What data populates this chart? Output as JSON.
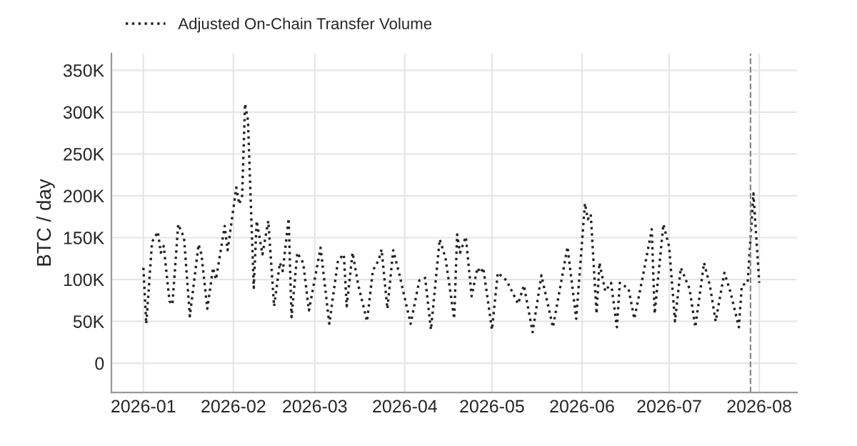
{
  "chart_data": {
    "type": "line",
    "ylabel": "BTC / day",
    "x": [
      "2026-01-01",
      "2026-01-02",
      "2026-01-04",
      "2026-01-06",
      "2026-01-07",
      "2026-01-08",
      "2026-01-10",
      "2026-01-11",
      "2026-01-13",
      "2026-01-15",
      "2026-01-17",
      "2026-01-20",
      "2026-01-21",
      "2026-01-23",
      "2026-01-25",
      "2026-01-26",
      "2026-01-29",
      "2026-01-30",
      "2026-02-02",
      "2026-02-03",
      "2026-02-04",
      "2026-02-05",
      "2026-02-06",
      "2026-02-08",
      "2026-02-09",
      "2026-02-11",
      "2026-02-13",
      "2026-02-15",
      "2026-02-17",
      "2026-02-18",
      "2026-02-20",
      "2026-02-21",
      "2026-02-23",
      "2026-02-25",
      "2026-02-27",
      "2026-03-03",
      "2026-03-06",
      "2026-03-09",
      "2026-03-11",
      "2026-03-12",
      "2026-03-14",
      "2026-03-16",
      "2026-03-19",
      "2026-03-21",
      "2026-03-23",
      "2026-03-24",
      "2026-03-26",
      "2026-03-28",
      "2026-03-30",
      "2026-04-03",
      "2026-04-06",
      "2026-04-08",
      "2026-04-10",
      "2026-04-13",
      "2026-04-15",
      "2026-04-18",
      "2026-04-19",
      "2026-04-20",
      "2026-04-22",
      "2026-04-24",
      "2026-04-26",
      "2026-04-27",
      "2026-04-28",
      "2026-05-01",
      "2026-05-03",
      "2026-05-06",
      "2026-05-10",
      "2026-05-12",
      "2026-05-15",
      "2026-05-18",
      "2026-05-22",
      "2026-05-27",
      "2026-05-30",
      "2026-06-02",
      "2026-06-03",
      "2026-06-04",
      "2026-06-06",
      "2026-06-07",
      "2026-06-09",
      "2026-06-11",
      "2026-06-13",
      "2026-06-14",
      "2026-06-17",
      "2026-06-19",
      "2026-06-22",
      "2026-06-25",
      "2026-06-26",
      "2026-06-29",
      "2026-07-01",
      "2026-07-03",
      "2026-07-05",
      "2026-07-08",
      "2026-07-10",
      "2026-07-13",
      "2026-07-15",
      "2026-07-17",
      "2026-07-20",
      "2026-07-22",
      "2026-07-25",
      "2026-07-26",
      "2026-07-28",
      "2026-07-30",
      "2026-08-01"
    ],
    "series": [
      {
        "name": "Adjusted On-Chain Transfer Volume",
        "color": "#222222",
        "line_style": "dotted",
        "values": [
          114000,
          47000,
          145000,
          157000,
          132000,
          140000,
          74000,
          70000,
          166000,
          150000,
          56000,
          142000,
          130000,
          65000,
          114000,
          100000,
          164000,
          135000,
          210000,
          190000,
          200000,
          310000,
          290000,
          90000,
          170000,
          130000,
          170000,
          68000,
          120000,
          110000,
          173000,
          55000,
          132000,
          120000,
          63000,
          138000,
          47000,
          123000,
          130000,
          68000,
          132000,
          93000,
          50000,
          111000,
          123000,
          136000,
          65000,
          135000,
          108000,
          47000,
          99000,
          102000,
          40000,
          148000,
          126000,
          53000,
          154000,
          132000,
          151000,
          80000,
          114000,
          108000,
          114000,
          40000,
          108000,
          99000,
          71000,
          93000,
          37000,
          105000,
          43000,
          139000,
          53000,
          191000,
          172000,
          178000,
          59000,
          120000,
          86000,
          96000,
          43000,
          96000,
          89000,
          53000,
          105000,
          160000,
          59000,
          166000,
          139000,
          50000,
          114000,
          89000,
          43000,
          120000,
          93000,
          50000,
          108000,
          86000,
          43000,
          93000,
          96000,
          203000,
          96000
        ]
      }
    ],
    "xlim": [
      "2025-12-21",
      "2026-08-14"
    ],
    "xticks": [
      {
        "value": "2026-01-01",
        "label": "2026-01"
      },
      {
        "value": "2026-02-01",
        "label": "2026-02"
      },
      {
        "value": "2026-03-01",
        "label": "2026-03"
      },
      {
        "value": "2026-04-01",
        "label": "2026-04"
      },
      {
        "value": "2026-05-01",
        "label": "2026-05"
      },
      {
        "value": "2026-06-01",
        "label": "2026-06"
      },
      {
        "value": "2026-07-01",
        "label": "2026-07"
      },
      {
        "value": "2026-08-01",
        "label": "2026-08"
      }
    ],
    "ylim": [
      -35000,
      370000
    ],
    "yticks": [
      0,
      {
        "value": 50000,
        "label": "50K"
      },
      {
        "value": 100000,
        "label": "100K"
      },
      {
        "value": 150000,
        "label": "150K"
      },
      {
        "value": 200000,
        "label": "200K"
      },
      {
        "value": 250000,
        "label": "250K"
      },
      {
        "value": 300000,
        "label": "300K"
      },
      {
        "value": 350000,
        "label": "350K"
      }
    ],
    "ref_lines": [
      {
        "axis": "x",
        "value": "2026-07-29",
        "label": null,
        "color": "#888888",
        "line_style": "dashed"
      }
    ],
    "grid": true,
    "legend": "top left"
  }
}
